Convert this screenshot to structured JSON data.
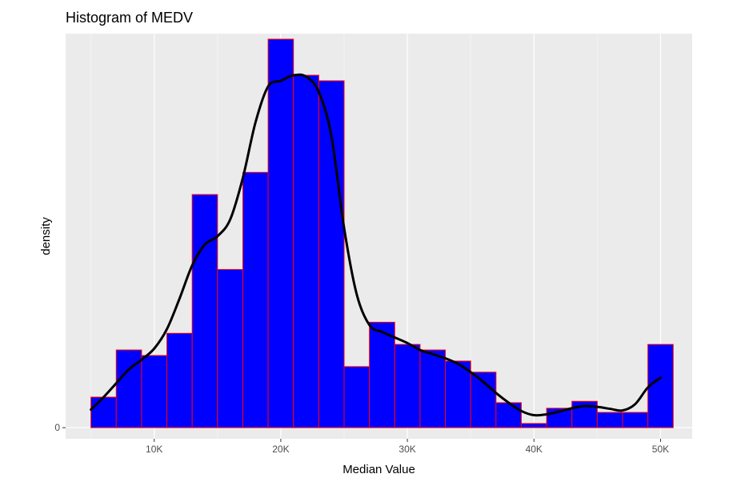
{
  "chart_data": {
    "type": "bar",
    "title": "Histogram of MEDV",
    "xlabel": "Median Value",
    "ylabel": "density",
    "xlim": [
      3000,
      52500
    ],
    "ylim": [
      -0.4,
      14.2
    ],
    "x_ticks": [
      {
        "value": 10000,
        "label": "10K"
      },
      {
        "value": 20000,
        "label": "20K"
      },
      {
        "value": 30000,
        "label": "30K"
      },
      {
        "value": 40000,
        "label": "40K"
      },
      {
        "value": 50000,
        "label": "50K"
      }
    ],
    "y_ticks": [
      {
        "value": 0,
        "label": "0"
      }
    ],
    "bin_width": 2000,
    "bins": [
      {
        "x0": 5000,
        "x1": 7000,
        "count": 1.1
      },
      {
        "x0": 7000,
        "x1": 9000,
        "count": 2.8
      },
      {
        "x0": 9000,
        "x1": 11000,
        "count": 2.6
      },
      {
        "x0": 11000,
        "x1": 13000,
        "count": 3.4
      },
      {
        "x0": 13000,
        "x1": 15000,
        "count": 8.4
      },
      {
        "x0": 15000,
        "x1": 17000,
        "count": 5.7
      },
      {
        "x0": 17000,
        "x1": 19000,
        "count": 9.2
      },
      {
        "x0": 19000,
        "x1": 21000,
        "count": 14.0
      },
      {
        "x0": 21000,
        "x1": 23000,
        "count": 12.7
      },
      {
        "x0": 23000,
        "x1": 25000,
        "count": 12.5
      },
      {
        "x0": 25000,
        "x1": 27000,
        "count": 2.2
      },
      {
        "x0": 27000,
        "x1": 29000,
        "count": 3.8
      },
      {
        "x0": 29000,
        "x1": 31000,
        "count": 3.0
      },
      {
        "x0": 31000,
        "x1": 33000,
        "count": 2.8
      },
      {
        "x0": 33000,
        "x1": 35000,
        "count": 2.4
      },
      {
        "x0": 35000,
        "x1": 37000,
        "count": 2.0
      },
      {
        "x0": 37000,
        "x1": 39000,
        "count": 0.9
      },
      {
        "x0": 39000,
        "x1": 41000,
        "count": 0.15
      },
      {
        "x0": 41000,
        "x1": 43000,
        "count": 0.7
      },
      {
        "x0": 43000,
        "x1": 45000,
        "count": 0.95
      },
      {
        "x0": 45000,
        "x1": 47000,
        "count": 0.55
      },
      {
        "x0": 47000,
        "x1": 49000,
        "count": 0.55
      },
      {
        "x0": 49000,
        "x1": 51000,
        "count": 3.0
      }
    ],
    "density_curve": {
      "x": [
        5000,
        6000,
        7000,
        8000,
        9000,
        10000,
        11000,
        12000,
        13000,
        14000,
        15000,
        16000,
        17000,
        18000,
        19000,
        20000,
        21000,
        22000,
        23000,
        24000,
        25000,
        26000,
        27000,
        28000,
        29000,
        30000,
        31000,
        32000,
        33000,
        34000,
        35000,
        36000,
        37000,
        38000,
        39000,
        40000,
        41000,
        42000,
        43000,
        44000,
        45000,
        46000,
        47000,
        48000,
        49000,
        50000
      ],
      "y": [
        0.65,
        1.1,
        1.6,
        2.1,
        2.45,
        2.85,
        3.55,
        4.65,
        5.85,
        6.6,
        6.9,
        7.5,
        9.0,
        11.0,
        12.3,
        12.5,
        12.7,
        12.65,
        12.1,
        10.5,
        7.2,
        4.8,
        3.7,
        3.45,
        3.25,
        3.05,
        2.8,
        2.65,
        2.5,
        2.3,
        2.0,
        1.65,
        1.25,
        0.9,
        0.6,
        0.45,
        0.48,
        0.58,
        0.7,
        0.78,
        0.75,
        0.68,
        0.62,
        0.85,
        1.45,
        1.8
      ]
    },
    "colors": {
      "panel_background": "#ebebeb",
      "grid_major": "#ffffff",
      "grid_minor": "#f5f5f5",
      "bar_fill": "#0000ff",
      "bar_outline": "#ff0000",
      "curve": "#000000",
      "tick_text": "#4d4d4d"
    },
    "grid": true,
    "legend": "none"
  }
}
